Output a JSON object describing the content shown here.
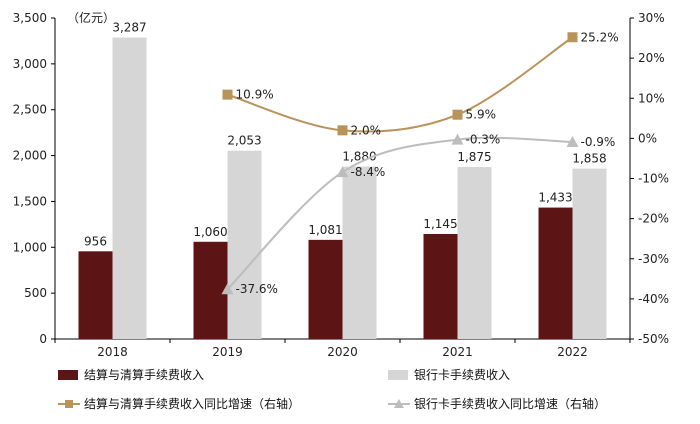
{
  "chart_data": {
    "type": "bar",
    "unit_label": "（亿元）",
    "categories": [
      "2018",
      "2019",
      "2020",
      "2021",
      "2022"
    ],
    "series": [
      {
        "name": "结算与清算手续费收入",
        "kind": "bar",
        "axis": "left",
        "color": "#5c1414",
        "values": [
          956,
          1060,
          1081,
          1145,
          1433
        ],
        "labels": [
          "956",
          "1,060",
          "1,081",
          "1,145",
          "1,433"
        ]
      },
      {
        "name": "银行卡手续费收入",
        "kind": "bar",
        "axis": "left",
        "color": "#d6d6d6",
        "values": [
          3287,
          2053,
          1880,
          1875,
          1858
        ],
        "labels": [
          "3,287",
          "2,053",
          "1,880",
          "1,875",
          "1,858"
        ]
      },
      {
        "name": "结算与清算手续费收入同比增速（右轴）",
        "kind": "line",
        "axis": "right",
        "color": "#b8935a",
        "marker": "square",
        "values": [
          null,
          10.9,
          2.0,
          5.9,
          25.2
        ],
        "labels": [
          "",
          "10.9%",
          "2.0%",
          "5.9%",
          "25.2%"
        ]
      },
      {
        "name": "银行卡手续费收入同比增速（右轴）",
        "kind": "line",
        "axis": "right",
        "color": "#bdbdbd",
        "marker": "triangle",
        "values": [
          null,
          -37.6,
          -8.4,
          -0.3,
          -0.9
        ],
        "labels": [
          "",
          "-37.6%",
          "-8.4%",
          "-0.3%",
          "-0.9%"
        ]
      }
    ],
    "y_left": {
      "min": 0,
      "max": 3500,
      "ticks": [
        0,
        500,
        1000,
        1500,
        2000,
        2500,
        3000,
        3500
      ],
      "tick_labels": [
        "0",
        "500",
        "1,000",
        "1,500",
        "2,000",
        "2,500",
        "3,000",
        "3,500"
      ]
    },
    "y_right": {
      "min": -50,
      "max": 30,
      "ticks": [
        -50,
        -40,
        -30,
        -20,
        -10,
        0,
        10,
        20,
        30
      ],
      "tick_labels": [
        "-50%",
        "-40%",
        "-30%",
        "-20%",
        "-10%",
        "0%",
        "10%",
        "20%",
        "30%"
      ]
    },
    "grid": false,
    "legend_position": "bottom"
  }
}
